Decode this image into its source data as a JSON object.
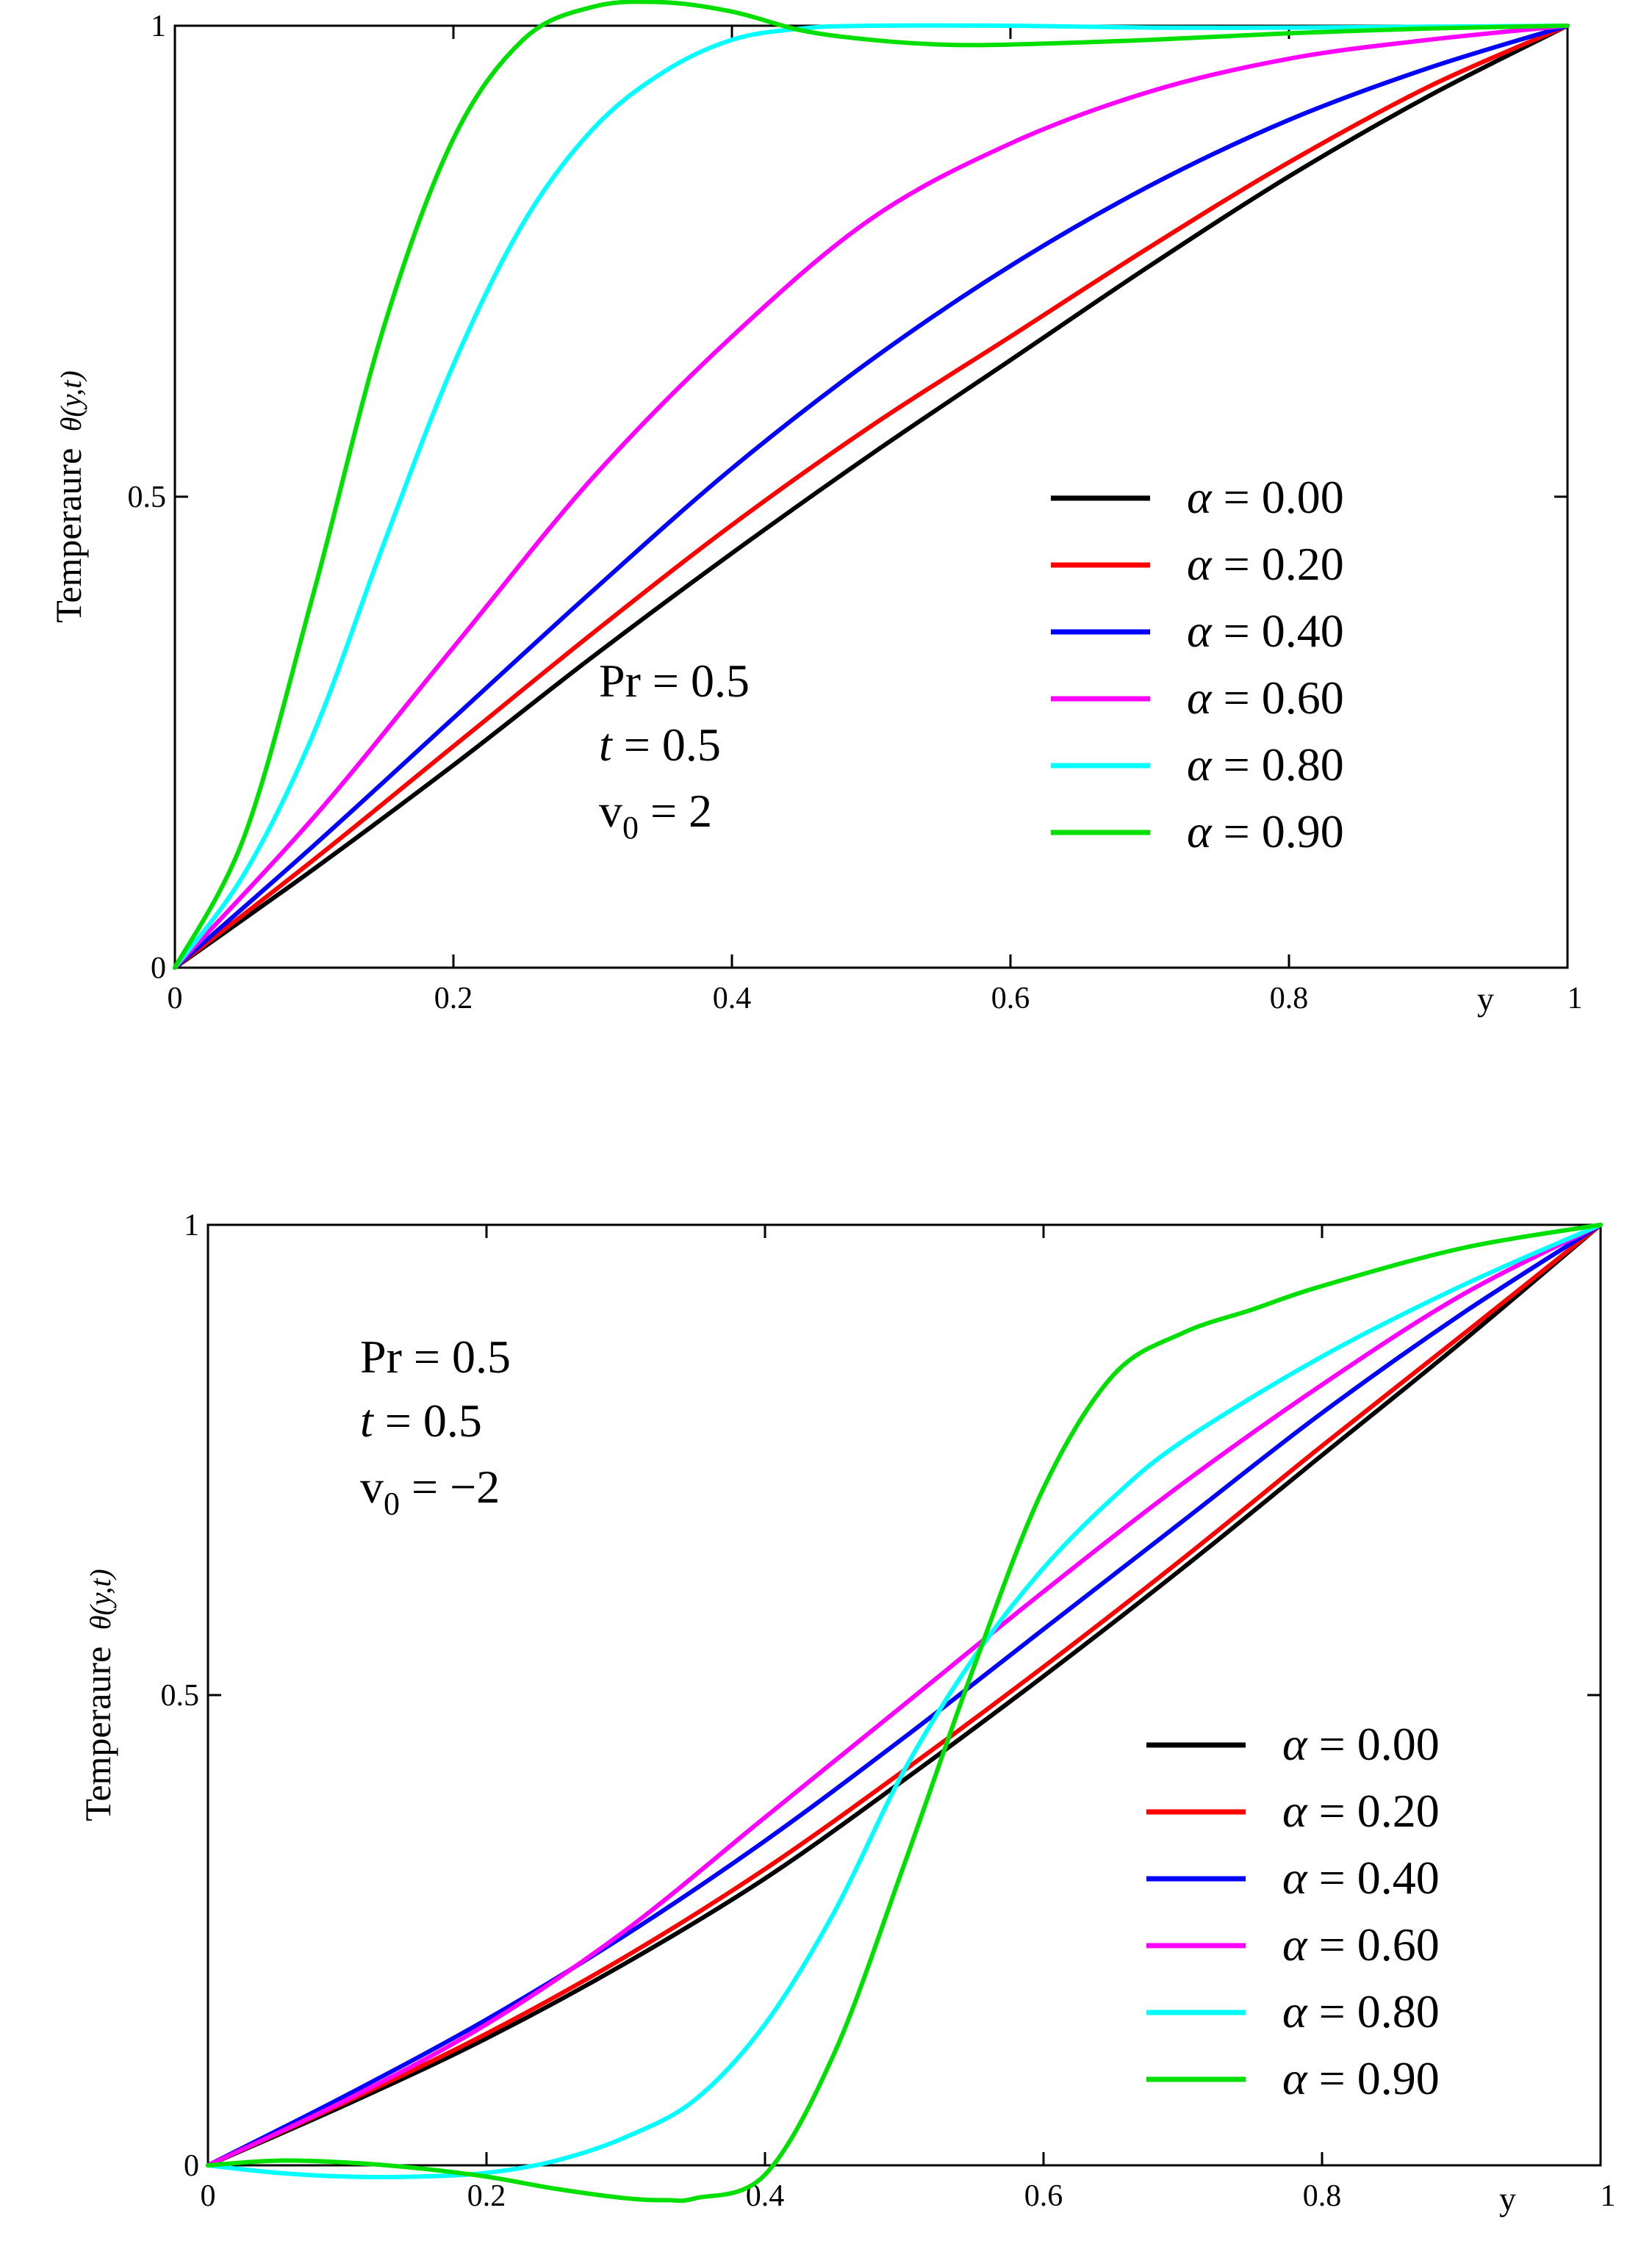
{
  "chart_data": [
    {
      "type": "line",
      "title": "",
      "xlabel": "y",
      "ylabel_text": "Temperaure",
      "ylabel_math": "θ(y,t)",
      "xlim": [
        0,
        1
      ],
      "ylim": [
        0,
        1
      ],
      "x_ticks": [
        "0",
        "0.2",
        "0.4",
        "0.6",
        "0.8",
        "1"
      ],
      "y_ticks": [
        "0",
        "0.5",
        "1"
      ],
      "params": {
        "pr": "Pr = 0.5",
        "t_label": "t",
        "t_value": " = 0.5",
        "v0": "v",
        "v0_sub": "0",
        "v0_value": " = 2"
      },
      "series": [
        {
          "name": "α = 0.00",
          "symbol": "α",
          "value_label": " = 0.00",
          "color": "#000000",
          "x": [
            0,
            0.1,
            0.2,
            0.3,
            0.4,
            0.5,
            0.6,
            0.7,
            0.8,
            0.9,
            1.0
          ],
          "y": [
            0,
            0.105,
            0.215,
            0.33,
            0.44,
            0.545,
            0.645,
            0.745,
            0.84,
            0.925,
            1.0
          ]
        },
        {
          "name": "α = 0.20",
          "symbol": "α",
          "value_label": " = 0.20",
          "color": "#ff0000",
          "x": [
            0,
            0.1,
            0.2,
            0.3,
            0.4,
            0.5,
            0.6,
            0.7,
            0.8,
            0.9,
            1.0
          ],
          "y": [
            0,
            0.115,
            0.235,
            0.355,
            0.47,
            0.575,
            0.67,
            0.765,
            0.855,
            0.935,
            1.0
          ]
        },
        {
          "name": "α = 0.40",
          "symbol": "α",
          "value_label": " = 0.40",
          "color": "#0000ff",
          "x": [
            0,
            0.1,
            0.2,
            0.3,
            0.4,
            0.5,
            0.6,
            0.7,
            0.8,
            0.9,
            1.0
          ],
          "y": [
            0,
            0.13,
            0.265,
            0.4,
            0.53,
            0.645,
            0.745,
            0.83,
            0.9,
            0.955,
            1.0
          ]
        },
        {
          "name": "α = 0.60",
          "symbol": "α",
          "value_label": " = 0.60",
          "color": "#ff00ff",
          "x": [
            0,
            0.1,
            0.2,
            0.3,
            0.4,
            0.5,
            0.6,
            0.7,
            0.8,
            0.9,
            1.0
          ],
          "y": [
            0,
            0.16,
            0.34,
            0.52,
            0.67,
            0.795,
            0.875,
            0.93,
            0.965,
            0.985,
            1.0
          ]
        },
        {
          "name": "α = 0.80",
          "symbol": "α",
          "value_label": " = 0.80",
          "color": "#00ffff",
          "x": [
            0,
            0.05,
            0.1,
            0.15,
            0.2,
            0.25,
            0.3,
            0.35,
            0.4,
            0.45,
            0.5,
            0.6,
            0.7,
            0.8,
            0.9,
            1.0
          ],
          "y": [
            0,
            0.1,
            0.25,
            0.45,
            0.64,
            0.79,
            0.89,
            0.95,
            0.985,
            0.997,
            1.0,
            1.0,
            0.998,
            0.998,
            0.999,
            1.0
          ]
        },
        {
          "name": "α = 0.90",
          "symbol": "α",
          "value_label": " = 0.90",
          "color": "#00e000",
          "x": [
            0,
            0.05,
            0.1,
            0.15,
            0.2,
            0.25,
            0.3,
            0.35,
            0.4,
            0.45,
            0.5,
            0.55,
            0.6,
            0.7,
            0.8,
            0.9,
            1.0
          ],
          "y": [
            0,
            0.14,
            0.4,
            0.68,
            0.88,
            0.985,
            1.02,
            1.025,
            1.015,
            0.995,
            0.985,
            0.98,
            0.98,
            0.985,
            0.992,
            0.997,
            1.0
          ]
        }
      ]
    },
    {
      "type": "line",
      "title": "",
      "xlabel": "y",
      "ylabel_text": "Temperaure",
      "ylabel_math": "θ(y,t)",
      "xlim": [
        0,
        1
      ],
      "ylim": [
        0,
        1
      ],
      "x_ticks": [
        "0",
        "0.2",
        "0.4",
        "0.6",
        "0.8",
        "1"
      ],
      "y_ticks": [
        "0",
        "0.5",
        "1"
      ],
      "params": {
        "pr": "Pr = 0.5",
        "t_label": "t",
        "t_value": " = 0.5",
        "v0": "v",
        "v0_sub": "0",
        "v0_value": " = −2"
      },
      "series": [
        {
          "name": "α = 0.00",
          "symbol": "α",
          "value_label": " = 0.00",
          "color": "#000000",
          "x": [
            0,
            0.1,
            0.2,
            0.3,
            0.4,
            0.5,
            0.6,
            0.7,
            0.8,
            0.9,
            1.0
          ],
          "y": [
            0,
            0.065,
            0.135,
            0.215,
            0.305,
            0.41,
            0.52,
            0.635,
            0.755,
            0.875,
            1.0
          ]
        },
        {
          "name": "α = 0.20",
          "symbol": "α",
          "value_label": " = 0.20",
          "color": "#ff0000",
          "x": [
            0,
            0.1,
            0.2,
            0.3,
            0.4,
            0.5,
            0.6,
            0.7,
            0.8,
            0.9,
            1.0
          ],
          "y": [
            0,
            0.068,
            0.14,
            0.222,
            0.315,
            0.42,
            0.53,
            0.645,
            0.765,
            0.882,
            1.0
          ]
        },
        {
          "name": "α = 0.40",
          "symbol": "α",
          "value_label": " = 0.40",
          "color": "#0000ff",
          "x": [
            0,
            0.1,
            0.2,
            0.3,
            0.4,
            0.5,
            0.6,
            0.7,
            0.8,
            0.9,
            1.0
          ],
          "y": [
            0,
            0.075,
            0.155,
            0.245,
            0.345,
            0.455,
            0.57,
            0.685,
            0.8,
            0.905,
            1.0
          ]
        },
        {
          "name": "α = 0.60",
          "symbol": "α",
          "value_label": " = 0.60",
          "color": "#ff00ff",
          "x": [
            0,
            0.1,
            0.2,
            0.3,
            0.4,
            0.5,
            0.6,
            0.7,
            0.8,
            0.9,
            1.0
          ],
          "y": [
            0,
            0.07,
            0.15,
            0.25,
            0.37,
            0.49,
            0.61,
            0.725,
            0.83,
            0.925,
            1.0
          ]
        },
        {
          "name": "α = 0.80",
          "symbol": "α",
          "value_label": " = 0.80",
          "color": "#00ffff",
          "x": [
            0,
            0.05,
            0.1,
            0.15,
            0.2,
            0.25,
            0.3,
            0.35,
            0.4,
            0.45,
            0.5,
            0.55,
            0.6,
            0.65,
            0.7,
            0.8,
            0.9,
            1.0
          ],
          "y": [
            0,
            -0.008,
            -0.012,
            -0.012,
            -0.008,
            0.005,
            0.03,
            0.07,
            0.15,
            0.27,
            0.42,
            0.54,
            0.635,
            0.71,
            0.77,
            0.86,
            0.935,
            1.0
          ]
        },
        {
          "name": "α = 0.90",
          "symbol": "α",
          "value_label": " = 0.90",
          "color": "#00e000",
          "x": [
            0,
            0.05,
            0.1,
            0.15,
            0.2,
            0.25,
            0.3,
            0.33,
            0.35,
            0.4,
            0.45,
            0.5,
            0.55,
            0.6,
            0.65,
            0.7,
            0.75,
            0.8,
            0.9,
            1.0
          ],
          "y": [
            0,
            0.005,
            0.003,
            -0.003,
            -0.012,
            -0.025,
            -0.035,
            -0.037,
            -0.035,
            -0.01,
            0.12,
            0.32,
            0.53,
            0.72,
            0.84,
            0.885,
            0.91,
            0.935,
            0.975,
            1.0
          ]
        }
      ]
    }
  ]
}
